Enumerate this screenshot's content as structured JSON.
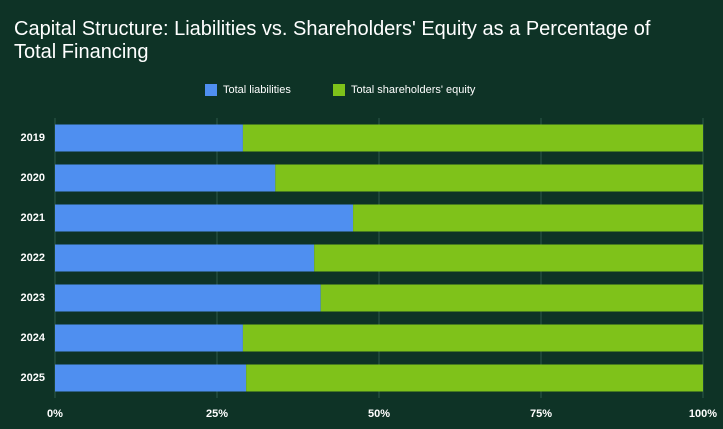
{
  "chart_data": {
    "type": "stacked_bar_horizontal",
    "title": "Capital Structure: Liabilities vs. Shareholders' Equity as a Percentage of Total Financing",
    "categories": [
      "2019",
      "2020",
      "2021",
      "2022",
      "2023",
      "2024",
      "2025"
    ],
    "series": [
      {
        "name": "Total liabilities",
        "color": "#4f8ff0",
        "values": [
          29,
          34,
          46,
          40,
          41,
          29,
          29.5
        ]
      },
      {
        "name": "Total shareholders' equity",
        "color": "#7fc21a",
        "values": [
          71,
          66,
          54,
          60,
          59,
          71,
          70.5
        ]
      }
    ],
    "xlim": [
      0,
      100
    ],
    "xticks": [
      {
        "value": 0,
        "label": "0%"
      },
      {
        "value": 25,
        "label": "25%"
      },
      {
        "value": 50,
        "label": "50%"
      },
      {
        "value": 75,
        "label": "75%"
      },
      {
        "value": 100,
        "label": "100%"
      }
    ],
    "grid": true,
    "legend": "top"
  }
}
